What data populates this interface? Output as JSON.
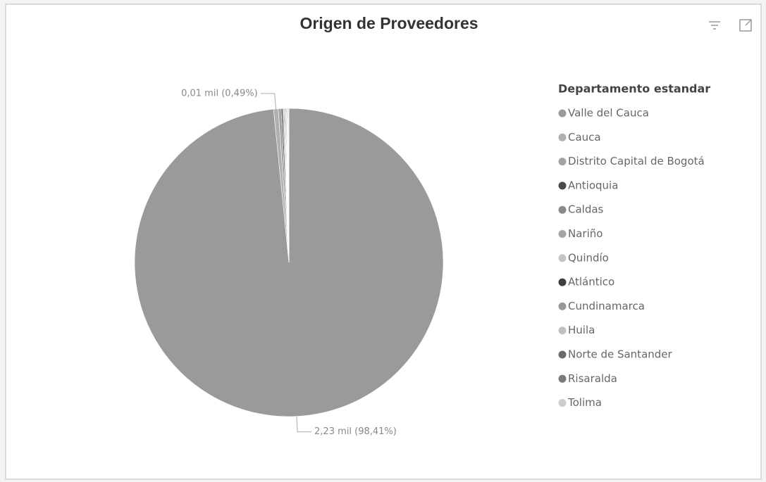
{
  "chart_data": {
    "type": "pie",
    "title": "Origen de Proveedores",
    "legend_title": "Departamento estandar",
    "legend": "right",
    "categories": [
      "Valle del Cauca",
      "Cauca",
      "Distrito Capital de Bogotá",
      "Antioquia",
      "Caldas",
      "Nariño",
      "Quindío",
      "Atlántico",
      "Cundinamarca",
      "Huila",
      "Norte de Santander",
      "Risaralda",
      "Tolima"
    ],
    "values": [
      98.41,
      0.49,
      0.3,
      0.15,
      0.1,
      0.1,
      0.08,
      0.07,
      0.07,
      0.06,
      0.06,
      0.06,
      0.05
    ],
    "value_labels": [
      "2,23 mil (98,41%)",
      "0,01 mil (0,49%)",
      null,
      null,
      null,
      null,
      null,
      null,
      null,
      null,
      null,
      null,
      null
    ],
    "colors": [
      "#9a9a9a",
      "#b0b0b0",
      "#a2a2a2",
      "#4a4a4a",
      "#8a8a8a",
      "#a5a5a5",
      "#c4c4c4",
      "#3e3e3e",
      "#989898",
      "#c0c0c0",
      "#6a6a6a",
      "#7a7a7a",
      "#cccccc"
    ]
  }
}
